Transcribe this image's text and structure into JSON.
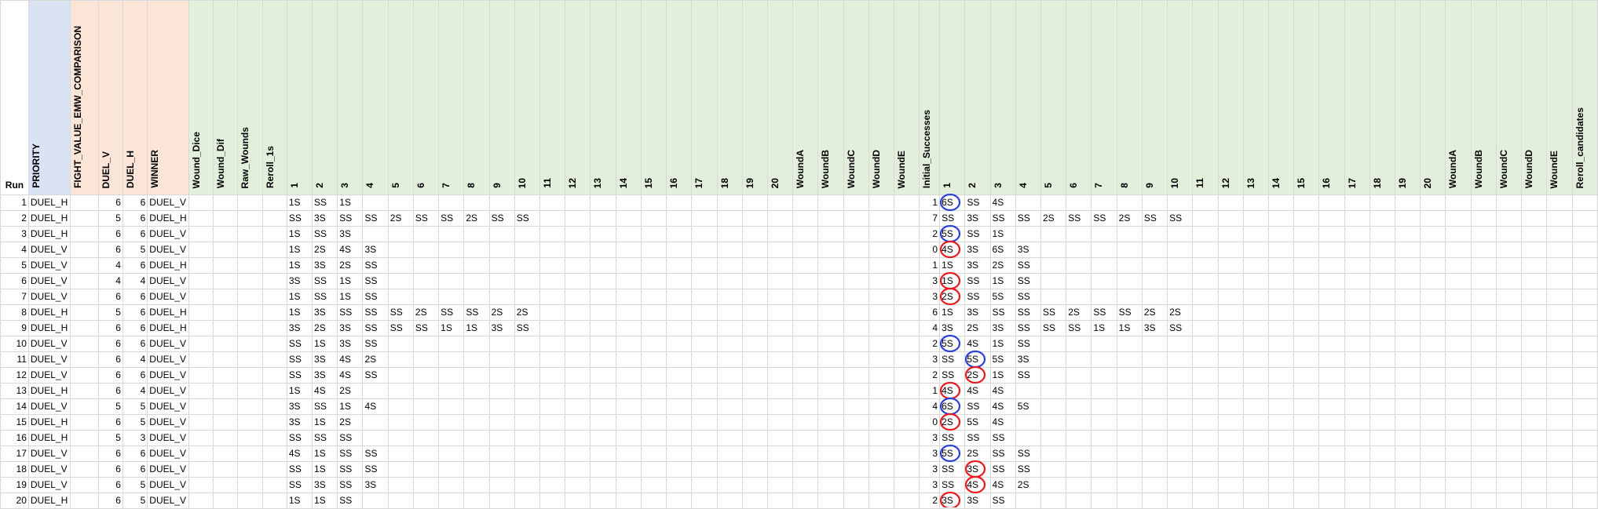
{
  "headers": [
    "Run",
    "PRIORITY",
    "FIGHT_VALUE_EMW_COMPARISON",
    "DUEL_V",
    "DUEL_H",
    "WINNER",
    "Wound_Dice",
    "Wound_Dif",
    "Raw_Wounds",
    "Reroll_1s",
    "1",
    "2",
    "3",
    "4",
    "5",
    "6",
    "7",
    "8",
    "9",
    "10",
    "11",
    "12",
    "13",
    "14",
    "15",
    "16",
    "17",
    "18",
    "19",
    "20",
    "WoundA",
    "WoundB",
    "WoundC",
    "WoundD",
    "WoundE",
    "Initial_Successes",
    "1",
    "2",
    "3",
    "4",
    "5",
    "6",
    "7",
    "8",
    "9",
    "10",
    "11",
    "12",
    "13",
    "14",
    "15",
    "16",
    "17",
    "18",
    "19",
    "20",
    "WoundA",
    "WoundB",
    "WoundC",
    "WoundD",
    "WoundE",
    "Reroll_candidates"
  ],
  "rows": [
    {
      "run": "1",
      "priority": "DUEL_H",
      "duel_v": "6",
      "duel_h": "6",
      "winner": "DUEL_V",
      "dice": [
        "1S",
        "SS",
        "1S"
      ],
      "initial": "1",
      "succ": [
        "6S",
        "SS",
        "4S"
      ]
    },
    {
      "run": "2",
      "priority": "DUEL_H",
      "duel_v": "5",
      "duel_h": "6",
      "winner": "DUEL_H",
      "dice": [
        "SS",
        "3S",
        "SS",
        "SS",
        "2S",
        "SS",
        "SS",
        "2S",
        "SS",
        "SS"
      ],
      "initial": "7",
      "succ": [
        "SS",
        "3S",
        "SS",
        "SS",
        "2S",
        "SS",
        "SS",
        "2S",
        "SS",
        "SS"
      ]
    },
    {
      "run": "3",
      "priority": "DUEL_H",
      "duel_v": "6",
      "duel_h": "6",
      "winner": "DUEL_V",
      "dice": [
        "1S",
        "SS",
        "3S"
      ],
      "initial": "2",
      "succ": [
        "5S",
        "SS",
        "1S"
      ]
    },
    {
      "run": "4",
      "priority": "DUEL_V",
      "duel_v": "6",
      "duel_h": "5",
      "winner": "DUEL_V",
      "dice": [
        "1S",
        "2S",
        "4S",
        "3S"
      ],
      "initial": "0",
      "succ": [
        "4S",
        "3S",
        "6S",
        "3S"
      ]
    },
    {
      "run": "5",
      "priority": "DUEL_V",
      "duel_v": "4",
      "duel_h": "6",
      "winner": "DUEL_H",
      "dice": [
        "1S",
        "3S",
        "2S",
        "SS"
      ],
      "initial": "1",
      "succ": [
        "1S",
        "3S",
        "2S",
        "SS"
      ]
    },
    {
      "run": "6",
      "priority": "DUEL_V",
      "duel_v": "4",
      "duel_h": "4",
      "winner": "DUEL_V",
      "dice": [
        "3S",
        "SS",
        "1S",
        "SS"
      ],
      "initial": "3",
      "succ": [
        "1S",
        "SS",
        "1S",
        "SS"
      ]
    },
    {
      "run": "7",
      "priority": "DUEL_V",
      "duel_v": "6",
      "duel_h": "6",
      "winner": "DUEL_V",
      "dice": [
        "1S",
        "SS",
        "1S",
        "SS"
      ],
      "initial": "3",
      "succ": [
        "2S",
        "SS",
        "5S",
        "SS"
      ]
    },
    {
      "run": "8",
      "priority": "DUEL_H",
      "duel_v": "5",
      "duel_h": "6",
      "winner": "DUEL_H",
      "dice": [
        "1S",
        "3S",
        "SS",
        "SS",
        "SS",
        "2S",
        "SS",
        "SS",
        "2S",
        "2S"
      ],
      "initial": "6",
      "succ": [
        "1S",
        "3S",
        "SS",
        "SS",
        "SS",
        "2S",
        "SS",
        "SS",
        "2S",
        "2S"
      ]
    },
    {
      "run": "9",
      "priority": "DUEL_H",
      "duel_v": "6",
      "duel_h": "6",
      "winner": "DUEL_H",
      "dice": [
        "3S",
        "2S",
        "3S",
        "SS",
        "SS",
        "SS",
        "1S",
        "1S",
        "3S",
        "SS"
      ],
      "initial": "4",
      "succ": [
        "3S",
        "2S",
        "3S",
        "SS",
        "SS",
        "SS",
        "1S",
        "1S",
        "3S",
        "SS"
      ]
    },
    {
      "run": "10",
      "priority": "DUEL_V",
      "duel_v": "6",
      "duel_h": "6",
      "winner": "DUEL_V",
      "dice": [
        "SS",
        "1S",
        "3S",
        "SS"
      ],
      "initial": "2",
      "succ": [
        "5S",
        "4S",
        "1S",
        "SS"
      ]
    },
    {
      "run": "11",
      "priority": "DUEL_V",
      "duel_v": "6",
      "duel_h": "4",
      "winner": "DUEL_V",
      "dice": [
        "SS",
        "3S",
        "4S",
        "2S"
      ],
      "initial": "3",
      "succ": [
        "SS",
        "5S",
        "5S",
        "3S"
      ]
    },
    {
      "run": "12",
      "priority": "DUEL_V",
      "duel_v": "6",
      "duel_h": "6",
      "winner": "DUEL_V",
      "dice": [
        "SS",
        "3S",
        "4S",
        "SS"
      ],
      "initial": "2",
      "succ": [
        "SS",
        "2S",
        "1S",
        "SS"
      ]
    },
    {
      "run": "13",
      "priority": "DUEL_H",
      "duel_v": "6",
      "duel_h": "4",
      "winner": "DUEL_V",
      "dice": [
        "1S",
        "4S",
        "2S"
      ],
      "initial": "1",
      "succ": [
        "4S",
        "4S",
        "4S"
      ]
    },
    {
      "run": "14",
      "priority": "DUEL_V",
      "duel_v": "5",
      "duel_h": "5",
      "winner": "DUEL_V",
      "dice": [
        "3S",
        "SS",
        "1S",
        "4S"
      ],
      "initial": "4",
      "succ": [
        "6S",
        "SS",
        "4S",
        "5S"
      ]
    },
    {
      "run": "15",
      "priority": "DUEL_H",
      "duel_v": "6",
      "duel_h": "5",
      "winner": "DUEL_V",
      "dice": [
        "3S",
        "1S",
        "2S"
      ],
      "initial": "0",
      "succ": [
        "2S",
        "5S",
        "4S"
      ]
    },
    {
      "run": "16",
      "priority": "DUEL_H",
      "duel_v": "5",
      "duel_h": "3",
      "winner": "DUEL_V",
      "dice": [
        "SS",
        "SS",
        "SS"
      ],
      "initial": "3",
      "succ": [
        "SS",
        "SS",
        "SS"
      ]
    },
    {
      "run": "17",
      "priority": "DUEL_V",
      "duel_v": "6",
      "duel_h": "6",
      "winner": "DUEL_V",
      "dice": [
        "4S",
        "1S",
        "SS",
        "SS"
      ],
      "initial": "3",
      "succ": [
        "5S",
        "2S",
        "SS",
        "SS"
      ]
    },
    {
      "run": "18",
      "priority": "DUEL_V",
      "duel_v": "6",
      "duel_h": "6",
      "winner": "DUEL_V",
      "dice": [
        "SS",
        "1S",
        "SS",
        "SS"
      ],
      "initial": "3",
      "succ": [
        "SS",
        "3S",
        "SS",
        "SS"
      ]
    },
    {
      "run": "19",
      "priority": "DUEL_V",
      "duel_v": "6",
      "duel_h": "5",
      "winner": "DUEL_V",
      "dice": [
        "SS",
        "3S",
        "SS",
        "3S"
      ],
      "initial": "3",
      "succ": [
        "SS",
        "4S",
        "4S",
        "2S"
      ]
    },
    {
      "run": "20",
      "priority": "DUEL_H",
      "duel_v": "6",
      "duel_h": "5",
      "winner": "DUEL_V",
      "dice": [
        "1S",
        "1S",
        "SS"
      ],
      "initial": "2",
      "succ": [
        "3S",
        "3S",
        "SS"
      ]
    }
  ],
  "annotations": [
    {
      "row": 1,
      "col": 1,
      "color": "#2b3fd6"
    },
    {
      "row": 3,
      "col": 1,
      "color": "#2b3fd6"
    },
    {
      "row": 4,
      "col": 1,
      "color": "#e8191f"
    },
    {
      "row": 6,
      "col": 1,
      "color": "#e8191f"
    },
    {
      "row": 7,
      "col": 1,
      "color": "#e8191f"
    },
    {
      "row": 10,
      "col": 1,
      "color": "#2b3fd6"
    },
    {
      "row": 11,
      "col": 2,
      "color": "#2b3fd6"
    },
    {
      "row": 12,
      "col": 2,
      "color": "#e8191f"
    },
    {
      "row": 13,
      "col": 1,
      "color": "#e8191f"
    },
    {
      "row": 14,
      "col": 1,
      "color": "#2b3fd6"
    },
    {
      "row": 15,
      "col": 1,
      "color": "#e8191f"
    },
    {
      "row": 17,
      "col": 1,
      "color": "#2b3fd6"
    },
    {
      "row": 18,
      "col": 2,
      "color": "#e8191f"
    },
    {
      "row": 19,
      "col": 2,
      "color": "#e8191f"
    },
    {
      "row": 20,
      "col": 1,
      "color": "#e8191f"
    }
  ],
  "colors": {
    "priority_bg": "#dae3f3",
    "duel_bg": "#fbe5d6",
    "wound_bg": "#e2efda",
    "gridline": "#d8d8d8"
  }
}
